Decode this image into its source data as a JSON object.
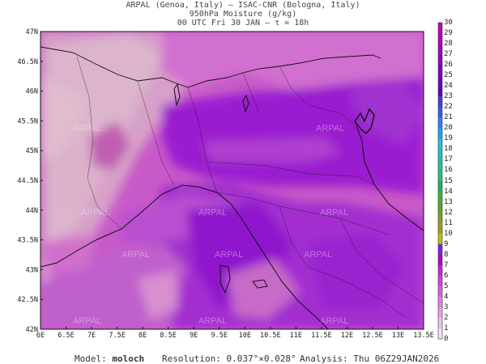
{
  "header": {
    "line1": "ARPAL (Genoa, Italy)  –  ISAC-CNR (Bologna, Italy)",
    "line2": "950hPa Moisture (g/kg)",
    "line3": "00 UTC Fri 30 JAN  –  τ = 18h"
  },
  "map": {
    "lat_labels": [
      "47N",
      "46.5N",
      "46N",
      "45.5N",
      "45N",
      "44.5N",
      "44N",
      "43.5N",
      "43N",
      "42.5N",
      "42N"
    ],
    "lon_labels": [
      "6E",
      "6.5E",
      "7E",
      "7.5E",
      "8E",
      "8.5E",
      "9E",
      "9.5E",
      "10E",
      "10.5E",
      "11E",
      "11.5E",
      "12E",
      "12.5E",
      "13E",
      "13.5E"
    ],
    "watermark": "ARPAL"
  },
  "colorbar": {
    "labels": [
      "30",
      "29",
      "28",
      "27",
      "26",
      "25",
      "24",
      "23",
      "22",
      "21",
      "20",
      "19",
      "18",
      "17",
      "16",
      "15",
      "14",
      "13",
      "12",
      "11",
      "10",
      "9",
      "8",
      "7",
      "6",
      "5",
      "4",
      "3",
      "2",
      "1",
      "0"
    ],
    "colors": [
      "#c000c0",
      "#b000c0",
      "#a000c0",
      "#9000c0",
      "#8000c0",
      "#7000c0",
      "#6000c0",
      "#4040d0",
      "#3060e0",
      "#3080f0",
      "#20a0f0",
      "#20c0e0",
      "#20c0c0",
      "#20c0a0",
      "#20c080",
      "#20b060",
      "#40b040",
      "#60a030",
      "#80a020",
      "#a0a020",
      "#c0c000",
      "#8020e0",
      "#b000d0",
      "#c820d8",
      "#d040e0",
      "#d860e0",
      "#e080e8",
      "#e8a0e8",
      "#f0c0f0",
      "#f8e0f8"
    ]
  },
  "footer": {
    "model_label": "Model:",
    "model_value": "moloch",
    "resolution_label": "Resolution:",
    "resolution_value": "0.037°×0.028°",
    "analysis_label": "Analysis:",
    "analysis_value": "Thu 06Z29JAN2026"
  }
}
